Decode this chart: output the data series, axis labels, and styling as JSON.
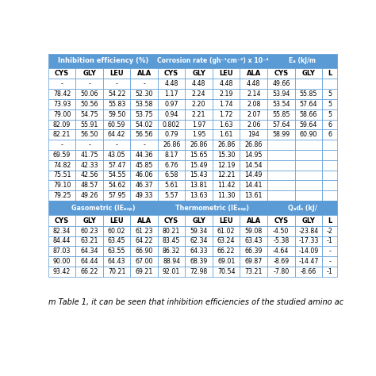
{
  "header_bg": "#5B9BD5",
  "header_text": "#FFFFFF",
  "subheader_bg": "#FFFFFF",
  "row_bg": "#FFFFFF",
  "border_color": "#5B9BD5",
  "text_color": "#000000",
  "section1_subheader": [
    "CYS",
    "GLY",
    "LEU",
    "ALA",
    "CYS",
    "GLY",
    "LEU",
    "ALA",
    "CYS",
    "GLY",
    "L"
  ],
  "section1_rows": [
    [
      "-",
      "-",
      "-",
      "-",
      "4.48",
      "4.48",
      "4.48",
      "4.48",
      "49.66",
      "",
      ""
    ],
    [
      "78.42",
      "50.06",
      "54.22",
      "52.30",
      "1.17",
      "2.24",
      "2.19",
      "2.14",
      "53.94",
      "55.85",
      "5"
    ],
    [
      "73.93",
      "50.56",
      "55.83",
      "53.58",
      "0.97",
      "2.20",
      "1.74",
      "2.08",
      "53.54",
      "57.64",
      "5"
    ],
    [
      "79.00",
      "54.75",
      "59.50",
      "53.75",
      "0.94",
      "2.21",
      "1.72",
      "2.07",
      "55.85",
      "58.66",
      "5"
    ],
    [
      "82.09",
      "55.91",
      "60.59",
      "54.02",
      "0.802",
      "1.97",
      "1.63",
      "2.06",
      "57.64",
      "59.64",
      "6"
    ],
    [
      "82.21",
      "56.50",
      "64.42",
      "56.56",
      "0.79",
      "1.95",
      "1.61",
      "194",
      "58.99",
      "60.90",
      "6"
    ],
    [
      "-",
      "-",
      "-",
      "-",
      "26.86",
      "26.86",
      "26.86",
      "26.86",
      "",
      "",
      ""
    ],
    [
      "69.59",
      "41.75",
      "43.05",
      "44.36",
      "8.17",
      "15.65",
      "15.30",
      "14.95",
      "",
      "",
      ""
    ],
    [
      "74.82",
      "42.33",
      "57.47",
      "45.85",
      "6.76",
      "15.49",
      "12.19",
      "14.54",
      "",
      "",
      ""
    ],
    [
      "75.51",
      "42.56",
      "54.55",
      "46.06",
      "6.58",
      "15.43",
      "12.21",
      "14.49",
      "",
      "",
      ""
    ],
    [
      "79.10",
      "48.57",
      "54.62",
      "46.37",
      "5.61",
      "13.81",
      "11.42",
      "14.41",
      "",
      "",
      ""
    ],
    [
      "79.25",
      "49.26",
      "57.95",
      "49.33",
      "5.57",
      "13.63",
      "11.30",
      "13.61",
      "",
      "",
      ""
    ]
  ],
  "section2_rows": [
    [
      "82.34",
      "60.23",
      "60.02",
      "61.23",
      "80.21",
      "59.34",
      "61.02",
      "59.08",
      "-4.50",
      "-23.84",
      "-2"
    ],
    [
      "84.44",
      "63.21",
      "63.45",
      "64.22",
      "83.45",
      "62.34",
      "63.24",
      "63.43",
      "-5.38",
      "-17.33",
      "-1"
    ],
    [
      "87.03",
      "64.34",
      "63.55",
      "66.90",
      "86.32",
      "64.33",
      "66.22",
      "66.39",
      "-4.64",
      "-14.09",
      "-"
    ],
    [
      "90.00",
      "64.44",
      "64.43",
      "67.00",
      "88.94",
      "68.39",
      "69.01",
      "69.87",
      "-8.69",
      "-14.47",
      "-"
    ],
    [
      "93.42",
      "66.22",
      "70.21",
      "69.21",
      "92.01",
      "72.98",
      "70.54",
      "73.21",
      "-7.80",
      "-8.66",
      "-1"
    ]
  ],
  "footer_text": "m Table 1, it can be seen that inhibition efficiencies of the studied amino ac",
  "n_cols": 11,
  "header1_texts": [
    "Inhibition efficiency (%)",
    "Corrosion rate (gh⁻¹cm⁻²) x 10⁻⁴",
    "Eₐ (kJ/m"
  ],
  "header1_spans": [
    4,
    4,
    3
  ],
  "header2_texts": [
    "Gasometric (IEₑₓₚ)",
    "Thermometric (IEₑₓₚ)",
    "Qₐdₛ (kJ/"
  ],
  "header2_spans": [
    4,
    4,
    3
  ]
}
